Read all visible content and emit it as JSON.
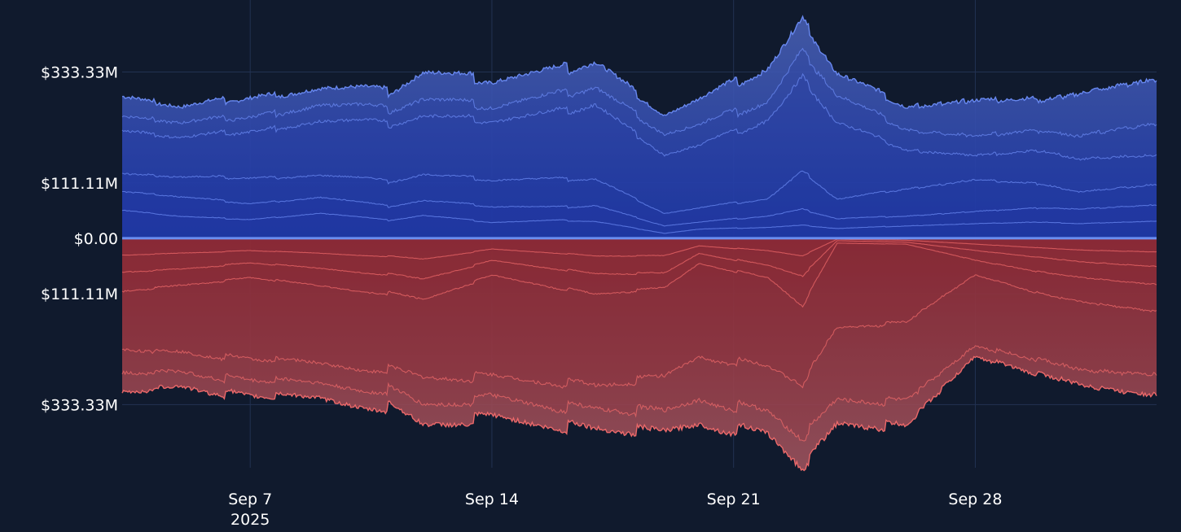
{
  "theme": {
    "background": "#101a2d",
    "grid": "#223252",
    "zero_line": "#6b8ff2",
    "text": "#ffffff",
    "long_color": "#6c8cf5",
    "short_color": "#f26b6b",
    "long_fill_core": "#1f3aa8",
    "short_fill_core": "#8e2a36"
  },
  "chart_data": {
    "type": "area",
    "title": "",
    "xlabel": "",
    "ylabel": "",
    "y_tick_labels": [
      "$333.33M",
      "$111.11M",
      "$0.00",
      "$111.11M",
      "$333.33M"
    ],
    "y_tick_values": [
      333.33,
      111.11,
      0,
      -111.11,
      -333.33
    ],
    "ylim": [
      -460,
      445
    ],
    "x_tick_labels": [
      "Sep 7",
      "Sep 14",
      "Sep 21",
      "Sep 28"
    ],
    "x_tick_year": "2025",
    "x_range": [
      "2025-09-03 07:00",
      "2025-10-03 06:00"
    ],
    "grid": true,
    "legend": "none",
    "series": [
      {
        "side": "long",
        "anchors": [
          [
            "2025-09-03",
            293
          ],
          [
            "2025-09-05",
            266
          ],
          [
            "2025-09-07",
            285
          ],
          [
            "2025-09-09",
            300
          ],
          [
            "2025-09-11",
            293
          ],
          [
            "2025-09-12",
            334
          ],
          [
            "2025-09-14",
            317
          ],
          [
            "2025-09-16",
            337
          ],
          [
            "2025-09-17",
            357
          ],
          [
            "2025-09-19",
            248
          ],
          [
            "2025-09-20",
            276
          ],
          [
            "2025-09-22",
            342
          ],
          [
            "2025-09-23",
            438
          ],
          [
            "2025-09-24",
            337
          ],
          [
            "2025-09-26",
            267
          ],
          [
            "2025-09-28",
            283
          ],
          [
            "2025-09-30",
            283
          ],
          [
            "2025-10-01",
            297
          ],
          [
            "2025-10-03",
            326
          ]
        ]
      },
      {
        "side": "long",
        "anchors": [
          [
            "2025-09-03",
            252
          ],
          [
            "2025-09-05",
            234
          ],
          [
            "2025-09-07",
            246
          ],
          [
            "2025-09-09",
            266
          ],
          [
            "2025-09-11",
            258
          ],
          [
            "2025-09-12",
            280
          ],
          [
            "2025-09-14",
            265
          ],
          [
            "2025-09-16",
            288
          ],
          [
            "2025-09-17",
            305
          ],
          [
            "2025-09-19",
            210
          ],
          [
            "2025-09-20",
            225
          ],
          [
            "2025-09-22",
            276
          ],
          [
            "2025-09-23",
            376
          ],
          [
            "2025-09-24",
            293
          ],
          [
            "2025-09-26",
            220
          ],
          [
            "2025-09-28",
            210
          ],
          [
            "2025-09-30",
            220
          ],
          [
            "2025-10-01",
            210
          ],
          [
            "2025-10-03",
            235
          ]
        ]
      },
      {
        "side": "long",
        "anchors": [
          [
            "2025-09-03",
            222
          ],
          [
            "2025-09-05",
            204
          ],
          [
            "2025-09-07",
            216
          ],
          [
            "2025-09-09",
            234
          ],
          [
            "2025-09-11",
            229
          ],
          [
            "2025-09-12",
            246
          ],
          [
            "2025-09-14",
            236
          ],
          [
            "2025-09-16",
            253
          ],
          [
            "2025-09-17",
            270
          ],
          [
            "2025-09-19",
            168
          ],
          [
            "2025-09-20",
            184
          ],
          [
            "2025-09-22",
            238
          ],
          [
            "2025-09-23",
            321
          ],
          [
            "2025-09-24",
            237
          ],
          [
            "2025-09-26",
            179
          ],
          [
            "2025-09-28",
            170
          ],
          [
            "2025-09-30",
            178
          ],
          [
            "2025-10-01",
            162
          ],
          [
            "2025-10-03",
            170
          ]
        ]
      },
      {
        "side": "long",
        "anchors": [
          [
            "2025-09-03",
            133
          ],
          [
            "2025-09-05",
            124
          ],
          [
            "2025-09-07",
            122
          ],
          [
            "2025-09-09",
            126
          ],
          [
            "2025-09-11",
            114
          ],
          [
            "2025-09-12",
            128
          ],
          [
            "2025-09-14",
            118
          ],
          [
            "2025-09-16",
            118
          ],
          [
            "2025-09-17",
            120
          ],
          [
            "2025-09-19",
            50
          ],
          [
            "2025-09-20",
            60
          ],
          [
            "2025-09-22",
            80
          ],
          [
            "2025-09-23",
            134
          ],
          [
            "2025-09-24",
            80
          ],
          [
            "2025-09-26",
            100
          ],
          [
            "2025-09-28",
            120
          ],
          [
            "2025-09-30",
            110
          ],
          [
            "2025-10-01",
            95
          ],
          [
            "2025-10-03",
            110
          ]
        ]
      },
      {
        "side": "long",
        "anchors": [
          [
            "2025-09-03",
            96
          ],
          [
            "2025-09-05",
            84
          ],
          [
            "2025-09-07",
            70
          ],
          [
            "2025-09-09",
            82
          ],
          [
            "2025-09-11",
            64
          ],
          [
            "2025-09-12",
            76
          ],
          [
            "2025-09-14",
            64
          ],
          [
            "2025-09-16",
            62
          ],
          [
            "2025-09-17",
            66
          ],
          [
            "2025-09-19",
            25
          ],
          [
            "2025-09-20",
            32
          ],
          [
            "2025-09-22",
            45
          ],
          [
            "2025-09-23",
            58
          ],
          [
            "2025-09-24",
            40
          ],
          [
            "2025-09-26",
            45
          ],
          [
            "2025-09-28",
            55
          ],
          [
            "2025-09-30",
            62
          ],
          [
            "2025-10-01",
            60
          ],
          [
            "2025-10-03",
            68
          ]
        ]
      },
      {
        "side": "long",
        "anchors": [
          [
            "2025-09-03",
            58
          ],
          [
            "2025-09-05",
            44
          ],
          [
            "2025-09-07",
            38
          ],
          [
            "2025-09-09",
            50
          ],
          [
            "2025-09-11",
            36
          ],
          [
            "2025-09-12",
            46
          ],
          [
            "2025-09-14",
            32
          ],
          [
            "2025-09-16",
            36
          ],
          [
            "2025-09-17",
            34
          ],
          [
            "2025-09-19",
            10
          ],
          [
            "2025-09-20",
            18
          ],
          [
            "2025-09-22",
            22
          ],
          [
            "2025-09-23",
            26
          ],
          [
            "2025-09-24",
            20
          ],
          [
            "2025-09-26",
            25
          ],
          [
            "2025-09-28",
            30
          ],
          [
            "2025-09-30",
            33
          ],
          [
            "2025-10-01",
            30
          ],
          [
            "2025-10-03",
            35
          ]
        ]
      },
      {
        "side": "short",
        "anchors": [
          [
            "2025-09-03",
            -318
          ],
          [
            "2025-09-05",
            -300
          ],
          [
            "2025-09-07",
            -320
          ],
          [
            "2025-09-09",
            -320
          ],
          [
            "2025-09-11",
            -338
          ],
          [
            "2025-09-12",
            -375
          ],
          [
            "2025-09-14",
            -360
          ],
          [
            "2025-09-16",
            -375
          ],
          [
            "2025-09-17",
            -385
          ],
          [
            "2025-09-19",
            -390
          ],
          [
            "2025-09-20",
            -368
          ],
          [
            "2025-09-22",
            -395
          ],
          [
            "2025-09-23",
            -458
          ],
          [
            "2025-09-24",
            -380
          ],
          [
            "2025-09-26",
            -380
          ],
          [
            "2025-09-28",
            -242
          ],
          [
            "2025-09-30",
            -280
          ],
          [
            "2025-10-01",
            -300
          ],
          [
            "2025-10-03",
            -322
          ]
        ]
      },
      {
        "side": "short",
        "anchors": [
          [
            "2025-09-03",
            -278
          ],
          [
            "2025-09-05",
            -270
          ],
          [
            "2025-09-07",
            -288
          ],
          [
            "2025-09-09",
            -290
          ],
          [
            "2025-09-11",
            -303
          ],
          [
            "2025-09-12",
            -335
          ],
          [
            "2025-09-14",
            -320
          ],
          [
            "2025-09-16",
            -337
          ],
          [
            "2025-09-17",
            -345
          ],
          [
            "2025-09-19",
            -348
          ],
          [
            "2025-09-20",
            -320
          ],
          [
            "2025-09-22",
            -350
          ],
          [
            "2025-09-23",
            -400
          ],
          [
            "2025-09-24",
            -330
          ],
          [
            "2025-09-26",
            -330
          ],
          [
            "2025-09-28",
            -220
          ],
          [
            "2025-09-30",
            -250
          ],
          [
            "2025-10-01",
            -270
          ],
          [
            "2025-10-03",
            -280
          ]
        ]
      },
      {
        "side": "short",
        "anchors": [
          [
            "2025-09-03",
            -230
          ],
          [
            "2025-09-05",
            -230
          ],
          [
            "2025-09-07",
            -245
          ],
          [
            "2025-09-09",
            -250
          ],
          [
            "2025-09-11",
            -262
          ],
          [
            "2025-09-12",
            -280
          ],
          [
            "2025-09-14",
            -278
          ],
          [
            "2025-09-16",
            -288
          ],
          [
            "2025-09-17",
            -298
          ],
          [
            "2025-09-19",
            -278
          ],
          [
            "2025-09-20",
            -235
          ],
          [
            "2025-09-22",
            -258
          ],
          [
            "2025-09-23",
            -292
          ],
          [
            "2025-09-24",
            -182
          ],
          [
            "2025-09-26",
            -170
          ],
          [
            "2025-09-28",
            -75
          ],
          [
            "2025-09-30",
            -115
          ],
          [
            "2025-10-01",
            -130
          ],
          [
            "2025-10-03",
            -150
          ]
        ]
      },
      {
        "side": "short",
        "anchors": [
          [
            "2025-09-03",
            -110
          ],
          [
            "2025-09-05",
            -95
          ],
          [
            "2025-09-07",
            -80
          ],
          [
            "2025-09-09",
            -95
          ],
          [
            "2025-09-11",
            -110
          ],
          [
            "2025-09-12",
            -123
          ],
          [
            "2025-09-14",
            -75
          ],
          [
            "2025-09-16",
            -100
          ],
          [
            "2025-09-17",
            -113
          ],
          [
            "2025-09-19",
            -100
          ],
          [
            "2025-09-20",
            -50
          ],
          [
            "2025-09-22",
            -80
          ],
          [
            "2025-09-23",
            -135
          ],
          [
            "2025-09-24",
            -10
          ],
          [
            "2025-09-26",
            -12
          ],
          [
            "2025-09-28",
            -45
          ],
          [
            "2025-09-30",
            -70
          ],
          [
            "2025-10-01",
            -80
          ],
          [
            "2025-10-03",
            -95
          ]
        ]
      },
      {
        "side": "short",
        "anchors": [
          [
            "2025-09-03",
            -70
          ],
          [
            "2025-09-05",
            -62
          ],
          [
            "2025-09-07",
            -50
          ],
          [
            "2025-09-09",
            -60
          ],
          [
            "2025-09-11",
            -72
          ],
          [
            "2025-09-12",
            -82
          ],
          [
            "2025-09-14",
            -45
          ],
          [
            "2025-09-16",
            -62
          ],
          [
            "2025-09-17",
            -72
          ],
          [
            "2025-09-19",
            -70
          ],
          [
            "2025-09-20",
            -30
          ],
          [
            "2025-09-22",
            -55
          ],
          [
            "2025-09-23",
            -75
          ],
          [
            "2025-09-24",
            -5
          ],
          [
            "2025-09-26",
            -8
          ],
          [
            "2025-09-28",
            -25
          ],
          [
            "2025-09-30",
            -40
          ],
          [
            "2025-10-01",
            -48
          ],
          [
            "2025-10-03",
            -58
          ]
        ]
      },
      {
        "side": "short",
        "anchors": [
          [
            "2025-09-03",
            -35
          ],
          [
            "2025-09-05",
            -30
          ],
          [
            "2025-09-07",
            -25
          ],
          [
            "2025-09-09",
            -30
          ],
          [
            "2025-09-11",
            -36
          ],
          [
            "2025-09-12",
            -42
          ],
          [
            "2025-09-14",
            -22
          ],
          [
            "2025-09-16",
            -30
          ],
          [
            "2025-09-17",
            -36
          ],
          [
            "2025-09-19",
            -35
          ],
          [
            "2025-09-20",
            -15
          ],
          [
            "2025-09-22",
            -25
          ],
          [
            "2025-09-23",
            -35
          ],
          [
            "2025-09-24",
            -2
          ],
          [
            "2025-09-26",
            -4
          ],
          [
            "2025-09-28",
            -12
          ],
          [
            "2025-09-30",
            -20
          ],
          [
            "2025-10-01",
            -24
          ],
          [
            "2025-10-03",
            -28
          ]
        ]
      }
    ]
  }
}
